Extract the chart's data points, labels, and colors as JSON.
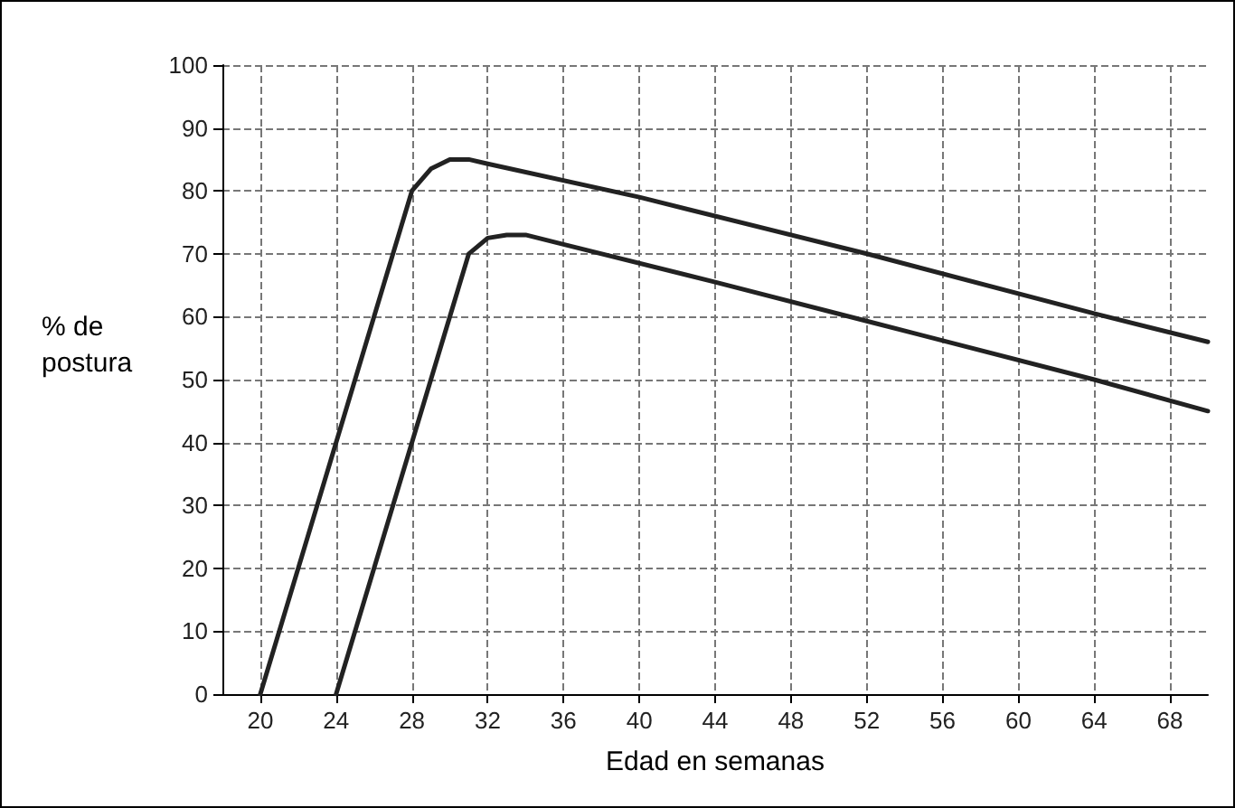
{
  "chart_data": {
    "type": "line",
    "xlabel": "Edad en semanas",
    "ylabel": "% de\npostura",
    "series": [
      {
        "color": "#222222",
        "x": [
          20,
          28,
          29,
          30,
          31,
          32,
          40,
          52,
          64,
          70
        ],
        "values": [
          0,
          80,
          83.5,
          85,
          85,
          84.3,
          79,
          70,
          60.5,
          56
        ]
      },
      {
        "color": "#222222",
        "x": [
          24,
          31,
          32,
          33,
          34,
          36,
          44,
          52,
          64,
          70
        ],
        "values": [
          0,
          70,
          72.5,
          73,
          73,
          71.5,
          65.5,
          59.3,
          50,
          45
        ]
      }
    ],
    "xlim": [
      18,
      70
    ],
    "xticks": [
      20,
      24,
      28,
      32,
      36,
      40,
      44,
      48,
      52,
      56,
      60,
      64,
      68
    ],
    "ylim": [
      0,
      100
    ],
    "yticks": [
      0,
      10,
      20,
      30,
      40,
      50,
      60,
      70,
      80,
      90,
      100
    ],
    "grid": true,
    "marker": "none",
    "line_style": "solid"
  }
}
